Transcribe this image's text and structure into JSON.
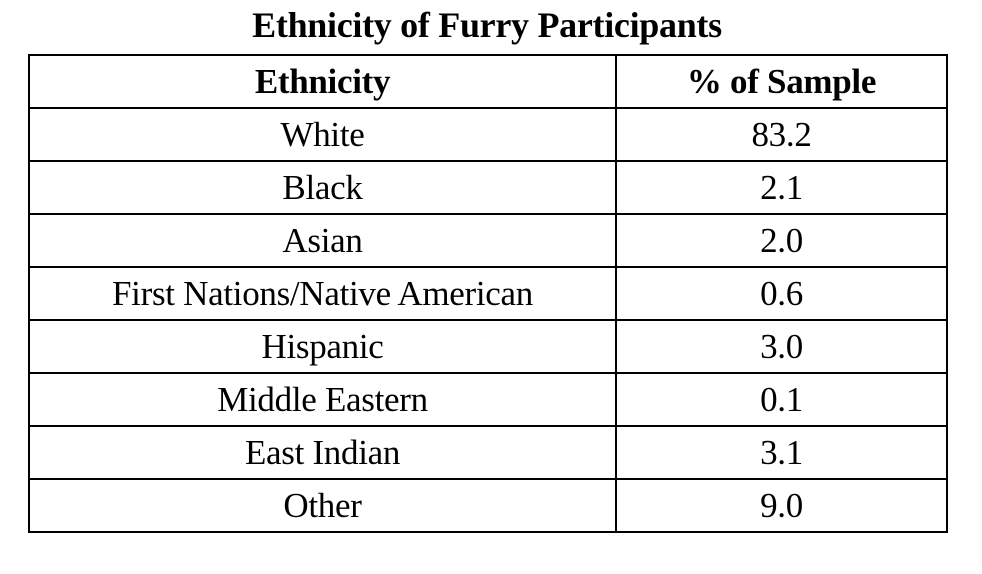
{
  "title": "Ethnicity of Furry Participants",
  "table": {
    "headers": [
      "Ethnicity",
      "% of Sample"
    ],
    "rows": [
      [
        "White",
        "83.2"
      ],
      [
        "Black",
        "2.1"
      ],
      [
        "Asian",
        "2.0"
      ],
      [
        "First Nations/Native American",
        "0.6"
      ],
      [
        "Hispanic",
        "3.0"
      ],
      [
        "Middle Eastern",
        "0.1"
      ],
      [
        "East Indian",
        "3.1"
      ],
      [
        "Other",
        "9.0"
      ]
    ]
  }
}
